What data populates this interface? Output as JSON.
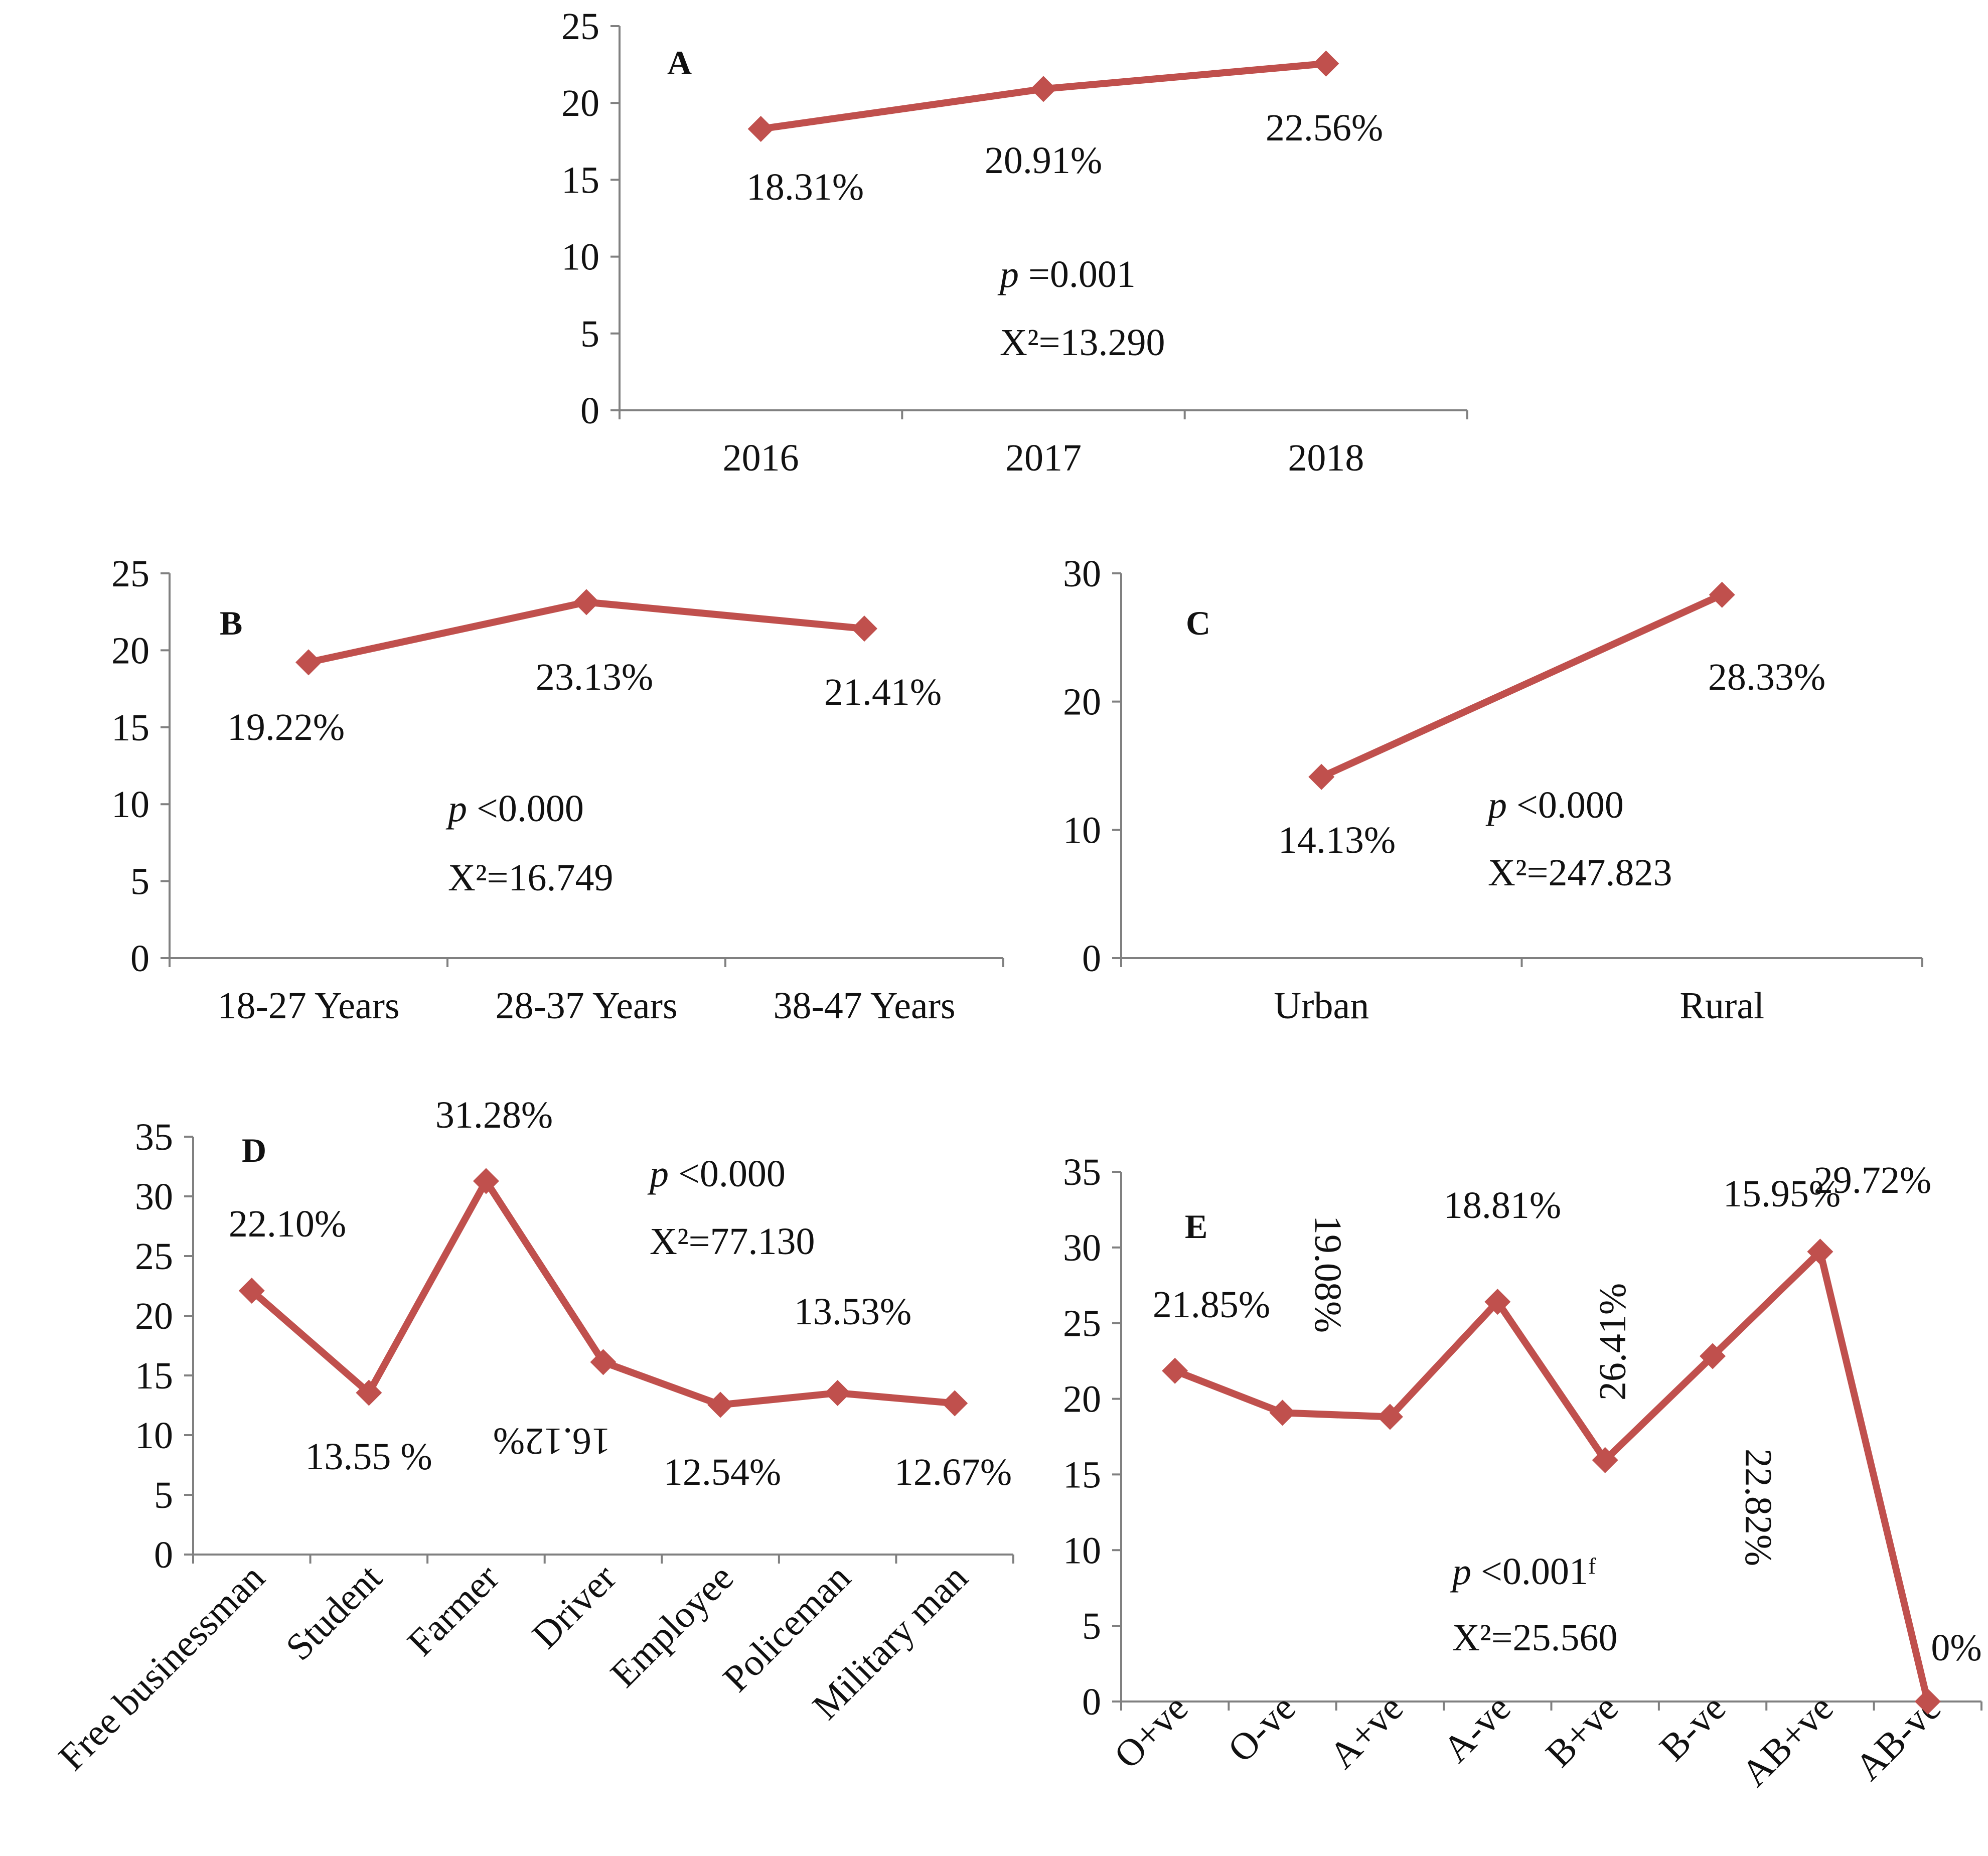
{
  "figure": {
    "line_color": "#c0504d",
    "axis_color": "#808080"
  },
  "chart_data": [
    {
      "id": "A",
      "type": "line",
      "title": "A",
      "categories": [
        "2016",
        "2017",
        "2018"
      ],
      "values": [
        18.31,
        20.91,
        22.56
      ],
      "data_labels": [
        "18.31%",
        "20.91%",
        "22.56%"
      ],
      "ylim": [
        0,
        25
      ],
      "yticks": [
        0,
        5,
        10,
        15,
        20,
        25
      ],
      "xlabel": "",
      "ylabel": "",
      "stat_p_italic": "p",
      "stat_p_rest": " =0.001",
      "stat_chi": "X²=13.290"
    },
    {
      "id": "B",
      "type": "line",
      "title": "B",
      "categories": [
        "18-27 Years",
        "28-37 Years",
        "38-47 Years"
      ],
      "values": [
        19.22,
        23.13,
        21.41
      ],
      "data_labels": [
        "19.22%",
        "23.13%",
        "21.41%"
      ],
      "ylim": [
        0,
        25
      ],
      "yticks": [
        0,
        5,
        10,
        15,
        20,
        25
      ],
      "xlabel": "",
      "ylabel": "",
      "stat_p_italic": "p",
      "stat_p_rest": " <0.000",
      "stat_chi": "X²=16.749"
    },
    {
      "id": "C",
      "type": "line",
      "title": "C",
      "categories": [
        "Urban",
        "Rural"
      ],
      "values": [
        14.13,
        28.33
      ],
      "data_labels": [
        "14.13%",
        "28.33%"
      ],
      "ylim": [
        0,
        30
      ],
      "yticks": [
        0,
        10,
        20,
        30
      ],
      "xlabel": "",
      "ylabel": "",
      "stat_p_italic": "p",
      "stat_p_rest": " <0.000",
      "stat_chi": "X²=247.823"
    },
    {
      "id": "D",
      "type": "line",
      "title": "D",
      "categories": [
        "Free businessman",
        "Student",
        "Farmer",
        "Driver",
        "Employee",
        "Policeman",
        "Military man"
      ],
      "values": [
        22.1,
        13.55,
        31.28,
        16.12,
        12.54,
        13.53,
        12.67
      ],
      "data_labels": [
        "22.10%",
        "13.55 %",
        "31.28%",
        "16.12%",
        "12.54%",
        "13.53%",
        "12.67%"
      ],
      "ylim": [
        0,
        35
      ],
      "yticks": [
        0,
        5,
        10,
        15,
        20,
        25,
        30,
        35
      ],
      "xlabel": "",
      "ylabel": "",
      "stat_p_italic": "p",
      "stat_p_rest": " <0.000",
      "stat_chi": "X²=77.130"
    },
    {
      "id": "E",
      "type": "line",
      "title": "E",
      "categories": [
        "O+ve",
        "O-ve",
        "A+ve",
        "A-ve",
        "B+ve",
        "B-ve",
        "AB+ve",
        "AB-ve"
      ],
      "values": [
        21.85,
        19.08,
        18.81,
        26.41,
        15.95,
        22.82,
        29.72,
        0
      ],
      "data_labels": [
        "21.85%",
        "19.08%",
        "18.81%",
        "26.41%",
        "15.95%",
        "22.82%",
        "29.72%",
        "0%"
      ],
      "ylim": [
        0,
        35
      ],
      "yticks": [
        0,
        5,
        10,
        15,
        20,
        25,
        30,
        35
      ],
      "xlabel": "",
      "ylabel": "",
      "stat_p_italic": "p",
      "stat_p_rest": " <0.001ᶠ",
      "stat_chi": "X²=25.560"
    }
  ]
}
